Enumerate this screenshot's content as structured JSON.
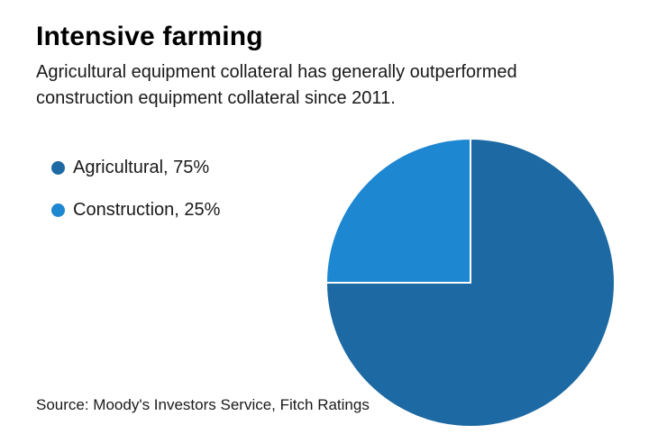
{
  "header": {
    "title": "Intensive farming",
    "subtitle": "Agricultural equipment collateral has generally outperformed construction equipment collateral since 2011."
  },
  "chart_data": {
    "type": "pie",
    "title": "Intensive farming",
    "series": [
      {
        "name": "Agricultural",
        "value": 75,
        "color": "#1c69a3"
      },
      {
        "name": "Construction",
        "value": 25,
        "color": "#1e87d1"
      }
    ],
    "start_angle_deg": 0,
    "direction": "clockwise",
    "center": {
      "x": 522,
      "y": 314
    },
    "radius": 160,
    "slice_border_color": "#ffffff",
    "slice_border_width": 2,
    "legend_position": "left"
  },
  "legend": {
    "items": [
      {
        "label": "Agricultural, 75%",
        "color": "#1c69a3"
      },
      {
        "label": "Construction, 25%",
        "color": "#1e87d1"
      }
    ]
  },
  "footer": {
    "source": "Source: Moody's Investors Service, Fitch Ratings"
  }
}
